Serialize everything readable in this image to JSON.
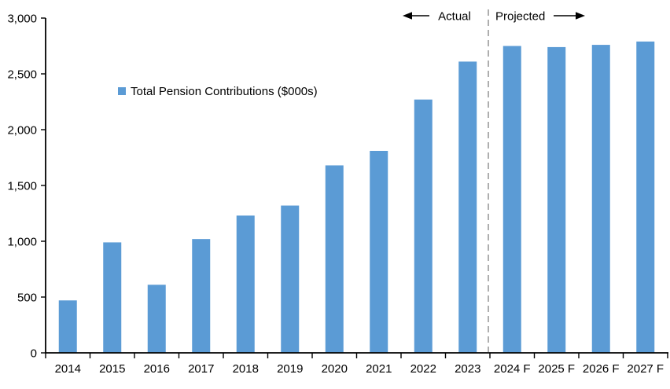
{
  "chart_data": {
    "type": "bar",
    "title": "",
    "xlabel": "",
    "ylabel": "",
    "legend_label": "Total Pension Contributions ($000s)",
    "legend_position": "inside-upper-left",
    "grid": "off",
    "categories": [
      "2014",
      "2015",
      "2016",
      "2017",
      "2018",
      "2019",
      "2020",
      "2021",
      "2022",
      "2023",
      "2024 F",
      "2025 F",
      "2026 F",
      "2027 F"
    ],
    "values": [
      470,
      990,
      610,
      1020,
      1230,
      1320,
      1680,
      1810,
      2270,
      2610,
      2750,
      2740,
      2760,
      2790
    ],
    "ylim": [
      0,
      3000
    ],
    "ytick_step": 500,
    "ytick_labels": [
      "0",
      "500",
      "1,000",
      "1,500",
      "2,000",
      "2,500",
      "3,000"
    ],
    "bar_color": "#5B9BD5",
    "divider": {
      "after_category": "2023",
      "style": "dashed",
      "color": "#A6A6A6"
    },
    "annotations": [
      {
        "text": "Actual",
        "arrow": "left",
        "side": "left-of-divider"
      },
      {
        "text": "Projected",
        "arrow": "right",
        "side": "right-of-divider"
      }
    ]
  },
  "header": {
    "actual_label": "Actual",
    "projected_label": "Projected"
  },
  "legend": {
    "label": "Total Pension Contributions ($000s)",
    "marker_color": "#5B9BD5"
  },
  "colors": {
    "bar": "#5B9BD5",
    "axis": "#000000",
    "divider": "#A6A6A6",
    "text": "#000000"
  }
}
